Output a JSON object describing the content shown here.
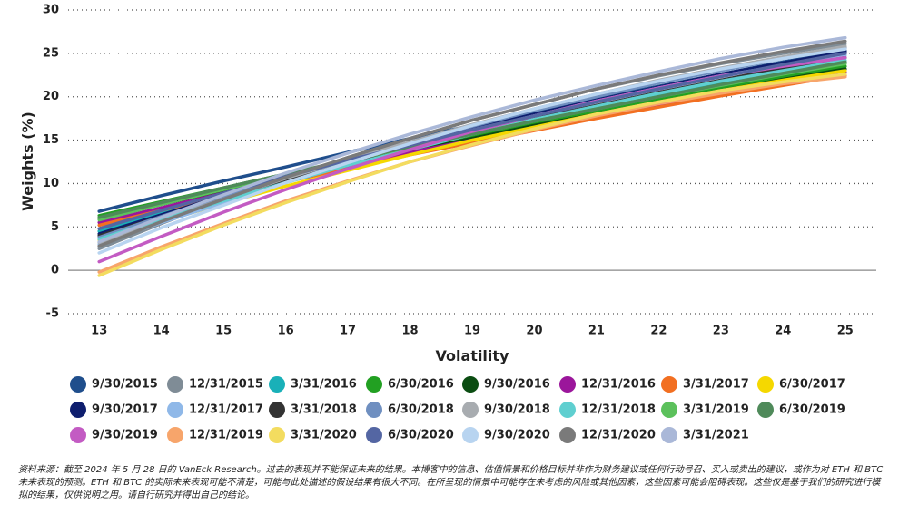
{
  "chart_data": {
    "type": "line",
    "xlabel": "Volatility",
    "ylabel": "Weights (%)",
    "x": [
      13,
      14,
      15,
      16,
      17,
      18,
      19,
      20,
      21,
      22,
      23,
      24,
      25
    ],
    "xlim": [
      12.5,
      25.5
    ],
    "xticks": [
      13,
      14,
      15,
      16,
      17,
      18,
      19,
      20,
      21,
      22,
      23,
      24,
      25
    ],
    "ylim": [
      -5,
      30
    ],
    "yticks": [
      -5,
      0,
      5,
      10,
      15,
      20,
      25,
      30
    ],
    "grid": true,
    "legend": "bottom",
    "series": [
      {
        "name": "9/30/2015",
        "color": "#1f4e8c",
        "values": [
          6.8,
          8.6,
          10.3,
          11.9,
          13.6,
          15.2,
          16.7,
          18.3,
          19.8,
          21.2,
          22.6,
          24.0,
          25.3
        ]
      },
      {
        "name": "12/31/2015",
        "color": "#7f8c96",
        "values": [
          2.5,
          5.4,
          8.1,
          10.6,
          13.0,
          15.2,
          17.3,
          19.1,
          20.9,
          22.4,
          23.8,
          25.0,
          26.1
        ]
      },
      {
        "name": "3/31/2016",
        "color": "#19b0b8",
        "values": [
          4.5,
          6.6,
          8.6,
          10.5,
          12.3,
          14.0,
          15.7,
          17.3,
          18.8,
          20.2,
          21.6,
          22.8,
          24.0
        ]
      },
      {
        "name": "6/30/2016",
        "color": "#22a022",
        "values": [
          6.3,
          7.9,
          9.5,
          11.1,
          12.6,
          14.1,
          15.5,
          17.0,
          18.3,
          19.7,
          21.0,
          22.3,
          23.5
        ]
      },
      {
        "name": "9/30/2016",
        "color": "#0b4d12",
        "values": [
          6.0,
          7.6,
          9.2,
          10.8,
          12.3,
          13.8,
          15.2,
          16.7,
          18.0,
          19.4,
          20.7,
          22.0,
          23.2
        ]
      },
      {
        "name": "12/31/2016",
        "color": "#9b169b",
        "values": [
          5.5,
          7.2,
          8.9,
          10.5,
          12.0,
          13.6,
          15.0,
          16.4,
          17.8,
          19.1,
          20.4,
          21.6,
          22.8
        ]
      },
      {
        "name": "3/31/2017",
        "color": "#f26f21",
        "values": [
          5.2,
          6.9,
          8.6,
          10.2,
          11.7,
          13.3,
          14.7,
          16.1,
          17.5,
          18.8,
          20.1,
          21.3,
          22.5
        ]
      },
      {
        "name": "6/30/2017",
        "color": "#f5d800",
        "values": [
          3.5,
          5.6,
          7.7,
          9.7,
          11.5,
          13.3,
          15.0,
          16.5,
          18.0,
          19.4,
          20.7,
          21.9,
          23.0
        ]
      },
      {
        "name": "9/30/2017",
        "color": "#0e1e6e",
        "values": [
          4.2,
          6.4,
          8.6,
          10.6,
          12.6,
          14.5,
          16.3,
          18.0,
          19.6,
          21.1,
          22.6,
          23.9,
          25.2
        ]
      },
      {
        "name": "12/31/2017",
        "color": "#8fb8e8",
        "values": [
          3.0,
          5.5,
          7.8,
          10.1,
          12.2,
          14.2,
          16.1,
          17.8,
          19.5,
          21.0,
          22.4,
          23.6,
          24.8
        ]
      },
      {
        "name": "3/31/2018",
        "color": "#333333",
        "values": [
          4.0,
          6.2,
          8.3,
          10.3,
          12.2,
          14.0,
          15.8,
          17.5,
          19.0,
          20.5,
          21.9,
          23.3,
          24.5
        ]
      },
      {
        "name": "6/30/2018",
        "color": "#6f8fc0",
        "values": [
          3.8,
          6.2,
          8.5,
          10.7,
          12.8,
          14.7,
          16.6,
          18.4,
          20.0,
          21.6,
          23.0,
          24.4,
          25.6
        ]
      },
      {
        "name": "9/30/2018",
        "color": "#a8acb0",
        "values": [
          3.2,
          5.8,
          8.2,
          10.6,
          12.7,
          14.8,
          16.8,
          18.6,
          20.3,
          21.9,
          23.3,
          24.6,
          25.8
        ]
      },
      {
        "name": "12/31/2018",
        "color": "#5fcfd0",
        "values": [
          3.6,
          5.9,
          8.0,
          10.1,
          12.1,
          13.9,
          15.7,
          17.4,
          18.9,
          20.4,
          21.8,
          23.0,
          24.2
        ]
      },
      {
        "name": "3/31/2019",
        "color": "#5cc15c",
        "values": [
          5.8,
          7.6,
          9.3,
          11.0,
          12.6,
          14.2,
          15.7,
          17.2,
          18.6,
          20.0,
          21.3,
          22.6,
          23.8
        ]
      },
      {
        "name": "6/30/2019",
        "color": "#4f8a5a",
        "values": [
          6.1,
          7.8,
          9.5,
          11.1,
          12.7,
          14.2,
          15.7,
          17.2,
          18.6,
          20.0,
          21.4,
          22.7,
          24.0
        ]
      },
      {
        "name": "9/30/2019",
        "color": "#c35bc3",
        "values": [
          1.0,
          3.9,
          6.7,
          9.3,
          11.7,
          13.9,
          16.0,
          17.8,
          19.5,
          21.0,
          22.4,
          23.5,
          24.5
        ]
      },
      {
        "name": "12/31/2019",
        "color": "#f7a56b",
        "values": [
          -0.2,
          2.7,
          5.4,
          8.0,
          10.3,
          12.5,
          14.4,
          16.2,
          17.8,
          19.2,
          20.4,
          21.5,
          22.3
        ]
      },
      {
        "name": "3/31/2020",
        "color": "#f3dc5f",
        "values": [
          -0.6,
          2.4,
          5.2,
          7.8,
          10.2,
          12.5,
          14.5,
          16.3,
          18.0,
          19.4,
          20.7,
          21.7,
          22.6
        ]
      },
      {
        "name": "6/30/2020",
        "color": "#5466a3",
        "values": [
          4.8,
          6.9,
          8.9,
          10.8,
          12.7,
          14.4,
          16.2,
          17.8,
          19.4,
          20.9,
          22.3,
          23.7,
          25.0
        ]
      },
      {
        "name": "9/30/2020",
        "color": "#b8d4f0",
        "values": [
          2.0,
          4.9,
          7.5,
          10.1,
          12.4,
          14.6,
          16.7,
          18.6,
          20.3,
          21.8,
          23.2,
          24.4,
          25.5
        ]
      },
      {
        "name": "12/31/2020",
        "color": "#7a7a7a",
        "values": [
          2.8,
          5.6,
          8.2,
          10.7,
          13.0,
          15.2,
          17.3,
          19.1,
          20.9,
          22.5,
          23.9,
          25.2,
          26.4
        ]
      },
      {
        "name": "3/31/2021",
        "color": "#aab8d8",
        "values": [
          3.3,
          6.1,
          8.7,
          11.2,
          13.5,
          15.7,
          17.7,
          19.6,
          21.3,
          22.9,
          24.4,
          25.7,
          26.8
        ]
      }
    ],
    "footnote": "资料来源：截至 2024 年 5 月 28 日的 VanEck Research。过去的表现并不能保证未来的结果。本博客中的信息、估值情景和价格目标并非作为财务建议或任何行动号召、买入或卖出的建议，或作为对 ETH 和 BTC 未来表现的预测。ETH 和 BTC 的实际未来表现可能不清楚，可能与此处描述的假设结果有很大不同。在所呈现的情景中可能存在未考虑的风险或其他因素，这些因素可能会阻碍表现。这些仅是基于我们的研究进行模拟的结果，仅供说明之用。请自行研究并得出自己的结论。"
  }
}
